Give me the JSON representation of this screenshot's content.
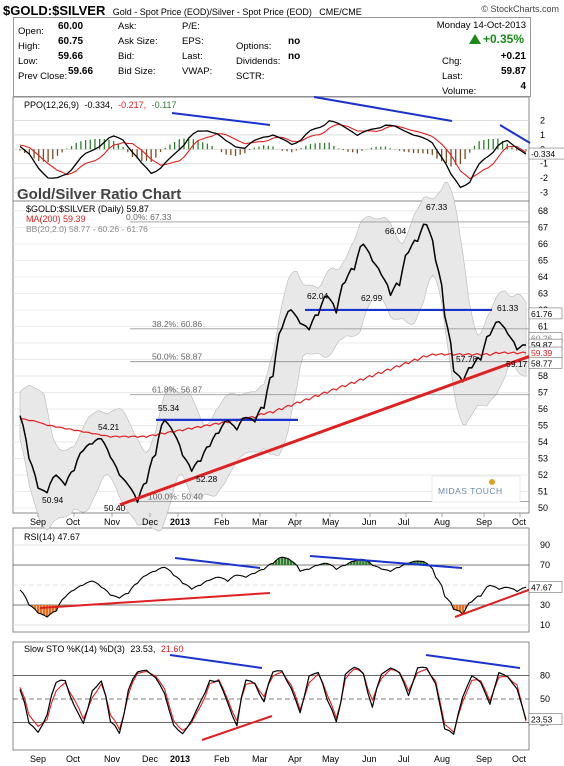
{
  "header": {
    "symbol": "$GOLD:$SILVER",
    "description": "Gold - Spot Price (EOD)/Silver - Spot Price (EOD)",
    "exchange": "CME/CME",
    "source": "© StockCharts.com",
    "date": "Monday  14-Oct-2013",
    "quote": [
      {
        "label": "Open:",
        "value": "60.00"
      },
      {
        "label": "High:",
        "value": "60.75"
      },
      {
        "label": "Low:",
        "value": "59.66"
      },
      {
        "label": "Prev Close:",
        "value": "59.66"
      }
    ],
    "ask": [
      {
        "label": "Ask:",
        "value": ""
      },
      {
        "label": "Ask Size:",
        "value": ""
      },
      {
        "label": "Bid:",
        "value": ""
      },
      {
        "label": "Bid Size:",
        "value": ""
      }
    ],
    "fund": [
      {
        "label": "P/E:",
        "value": ""
      },
      {
        "label": "EPS:",
        "value": ""
      },
      {
        "label": "Last:",
        "value": ""
      },
      {
        "label": "VWAP:",
        "value": ""
      }
    ],
    "opts": [
      {
        "label": "Options:",
        "value": "no"
      },
      {
        "label": "Dividends:",
        "value": "no"
      },
      {
        "label": "SCTR:",
        "value": ""
      }
    ],
    "change_pct": "+0.35%",
    "right": [
      {
        "label": "Chg:",
        "value": "+0.21"
      },
      {
        "label": "Last:",
        "value": "59.87"
      },
      {
        "label": "Volume:",
        "value": "4"
      }
    ]
  },
  "colors": {
    "price": "#000000",
    "ma": "#e02020",
    "bb": "#9a9a9a",
    "trend_blue": "#1a33cc",
    "trend_red": "#e02020",
    "fill_green": "#2e7d2e",
    "fill_orange": "#e07020"
  },
  "chart_data": [
    {
      "type": "line",
      "panel": "PPO",
      "legend": [
        "PPO(12,26,9)",
        "-0.334,",
        "-0.217,",
        "-0.117"
      ],
      "y_ticks": [
        "2",
        "1",
        "0",
        "-1",
        "-2",
        "-3"
      ],
      "ylim": [
        -3.4,
        2.6
      ],
      "last_label": "-0.334",
      "series": [
        {
          "name": "PPO",
          "values": [
            0.2,
            -0.4,
            -1.3,
            -2.0,
            -2.1,
            -1.6,
            -1.0,
            -0.4,
            0.1,
            0.5,
            0.9,
            0.7,
            -0.2,
            -1.0,
            -1.6,
            -1.3,
            -0.8,
            0.1,
            0.8,
            1.2,
            1.3,
            1.1,
            0.6,
            0.2,
            0.1,
            0.5,
            0.9,
            1.0,
            0.7,
            0.4,
            0.7,
            1.2,
            1.6,
            2.0,
            1.8,
            1.4,
            1.0,
            1.2,
            1.5,
            1.7,
            1.6,
            1.3,
            1.0,
            0.8,
            0.5,
            -0.5,
            -1.8,
            -2.6,
            -2.2,
            -1.2,
            -0.4,
            0.3,
            0.6,
            0.1,
            -0.334
          ]
        },
        {
          "name": "Signal",
          "values": [
            0.3,
            0.1,
            -0.4,
            -1.0,
            -1.5,
            -1.7,
            -1.5,
            -1.1,
            -0.7,
            -0.3,
            0.2,
            0.5,
            0.4,
            -0.1,
            -0.7,
            -1.1,
            -1.1,
            -0.7,
            -0.1,
            0.5,
            0.9,
            1.1,
            1.0,
            0.7,
            0.4,
            0.4,
            0.6,
            0.8,
            0.8,
            0.6,
            0.6,
            0.8,
            1.1,
            1.5,
            1.7,
            1.6,
            1.3,
            1.2,
            1.3,
            1.5,
            1.6,
            1.5,
            1.3,
            1.1,
            0.9,
            0.4,
            -0.5,
            -1.5,
            -2.0,
            -1.8,
            -1.2,
            -0.5,
            0.1,
            0.2,
            -0.217
          ]
        }
      ]
    },
    {
      "type": "line",
      "panel": "price",
      "title": "Gold/Silver Ratio Chart",
      "legend": [
        "$GOLD:$SILVER (Daily) 59.87",
        "MA(200) 59.39",
        "BB(20,2.0) 58.77 - 60.26 - 61.76"
      ],
      "x_ticks": [
        "Sep",
        "Oct",
        "Nov",
        "Dec",
        "2013",
        "Feb",
        "Mar",
        "Apr",
        "May",
        "Jun",
        "Jul",
        "Aug",
        "Sep",
        "Oct"
      ],
      "y_ticks": [
        50,
        51,
        52,
        53,
        54,
        55,
        56,
        57,
        58,
        59,
        60,
        61,
        62,
        63,
        64,
        65,
        66,
        67,
        68
      ],
      "ylim": [
        49.7,
        68.6
      ],
      "series": [
        {
          "name": "$GOLD:$SILVER",
          "values": [
            55.6,
            53.0,
            51.2,
            50.94,
            52.0,
            51.4,
            52.3,
            53.5,
            53.9,
            54.21,
            53.1,
            52.0,
            51.4,
            50.4,
            51.6,
            53.3,
            55.34,
            54.6,
            53.2,
            52.28,
            52.9,
            53.8,
            54.6,
            55.3,
            54.8,
            55.5,
            55.3,
            56.2,
            58.2,
            61.0,
            62.04,
            61.2,
            60.9,
            61.8,
            62.9,
            62.0,
            63.8,
            64.6,
            66.04,
            65.0,
            64.2,
            62.99,
            63.7,
            65.6,
            66.3,
            67.33,
            65.3,
            62.0,
            58.3,
            57.78,
            58.6,
            59.17,
            60.6,
            61.33,
            60.6,
            59.66,
            59.87
          ]
        },
        {
          "name": "MA(200)",
          "values": [
            55.4,
            55.3,
            55.2,
            55.0,
            54.9,
            54.8,
            54.7,
            54.6,
            54.5,
            54.4,
            54.3,
            54.3,
            54.3,
            54.3,
            54.3,
            54.4,
            54.5,
            54.6,
            54.7,
            54.8,
            54.9,
            55.0,
            55.1,
            55.2,
            55.3,
            55.4,
            55.5,
            55.7,
            55.8,
            56.0,
            56.2,
            56.4,
            56.6,
            56.8,
            57.0,
            57.2,
            57.4,
            57.6,
            57.8,
            58.0,
            58.2,
            58.4,
            58.6,
            58.8,
            59.0,
            59.2,
            59.3,
            59.3,
            59.3,
            59.3,
            59.3,
            59.3,
            59.3,
            59.4,
            59.4,
            59.39,
            59.39
          ]
        }
      ],
      "fib": [
        {
          "label": "0.0%: 67.33",
          "value": 67.33
        },
        {
          "label": "38.2%: 60.86",
          "value": 60.86
        },
        {
          "label": "50.0%: 58.87",
          "value": 58.87
        },
        {
          "label": "61.8%: 56.87",
          "value": 56.87
        },
        {
          "label": "100.0%: 50.40",
          "value": 50.4
        }
      ],
      "annotations": [
        "50.94",
        "54.21",
        "50.40",
        "55.34",
        "52.28",
        "62.04",
        "62.99",
        "66.04",
        "67.33",
        "57.78",
        "59.17",
        "61.33"
      ],
      "right_labels": [
        "61.76",
        "60.26",
        "59.87",
        "59.39",
        "58.77"
      ],
      "logo": "MIDAS TOUCH"
    },
    {
      "type": "line",
      "panel": "RSI",
      "legend": "RSI(14) 47.67",
      "y_ticks": [
        "90",
        "70",
        "50",
        "30",
        "10"
      ],
      "ylim": [
        5,
        95
      ],
      "last_label": "47.67",
      "series": [
        {
          "name": "RSI(14)",
          "values": [
            45,
            30,
            22,
            18,
            24,
            38,
            45,
            50,
            54,
            48,
            40,
            37,
            42,
            52,
            60,
            64,
            68,
            60,
            52,
            46,
            50,
            55,
            58,
            54,
            60,
            58,
            62,
            66,
            72,
            78,
            75,
            64,
            66,
            70,
            72,
            66,
            70,
            74,
            76,
            70,
            66,
            64,
            68,
            72,
            74,
            73,
            60,
            40,
            26,
            22,
            34,
            40,
            50,
            46,
            48,
            44,
            47.67
          ]
        }
      ]
    },
    {
      "type": "line",
      "panel": "STO",
      "legend": [
        "Slow STO %K(14) %D(3)",
        "23.53,",
        "21.60"
      ],
      "y_ticks": [
        "80",
        "50",
        "20"
      ],
      "ylim": [
        -5,
        105
      ],
      "last_label": "23.53",
      "series": [
        {
          "name": "%K",
          "values": [
            62,
            18,
            10,
            30,
            70,
            78,
            42,
            12,
            62,
            74,
            20,
            12,
            62,
            84,
            88,
            78,
            52,
            18,
            6,
            18,
            50,
            74,
            70,
            48,
            18,
            74,
            72,
            48,
            84,
            88,
            66,
            24,
            80,
            86,
            46,
            26,
            82,
            90,
            86,
            42,
            80,
            90,
            86,
            48,
            90,
            92,
            62,
            12,
            8,
            48,
            80,
            74,
            36,
            84,
            80,
            58,
            23.53
          ]
        },
        {
          "name": "%D",
          "values": [
            65,
            28,
            16,
            24,
            58,
            74,
            50,
            20,
            54,
            70,
            28,
            16,
            56,
            82,
            86,
            80,
            58,
            24,
            10,
            16,
            44,
            70,
            72,
            52,
            24,
            68,
            72,
            54,
            78,
            86,
            70,
            30,
            72,
            84,
            52,
            30,
            76,
            88,
            86,
            50,
            74,
            88,
            86,
            56,
            84,
            90,
            66,
            18,
            10,
            42,
            74,
            76,
            42,
            78,
            80,
            62,
            21.6
          ]
        }
      ]
    }
  ]
}
